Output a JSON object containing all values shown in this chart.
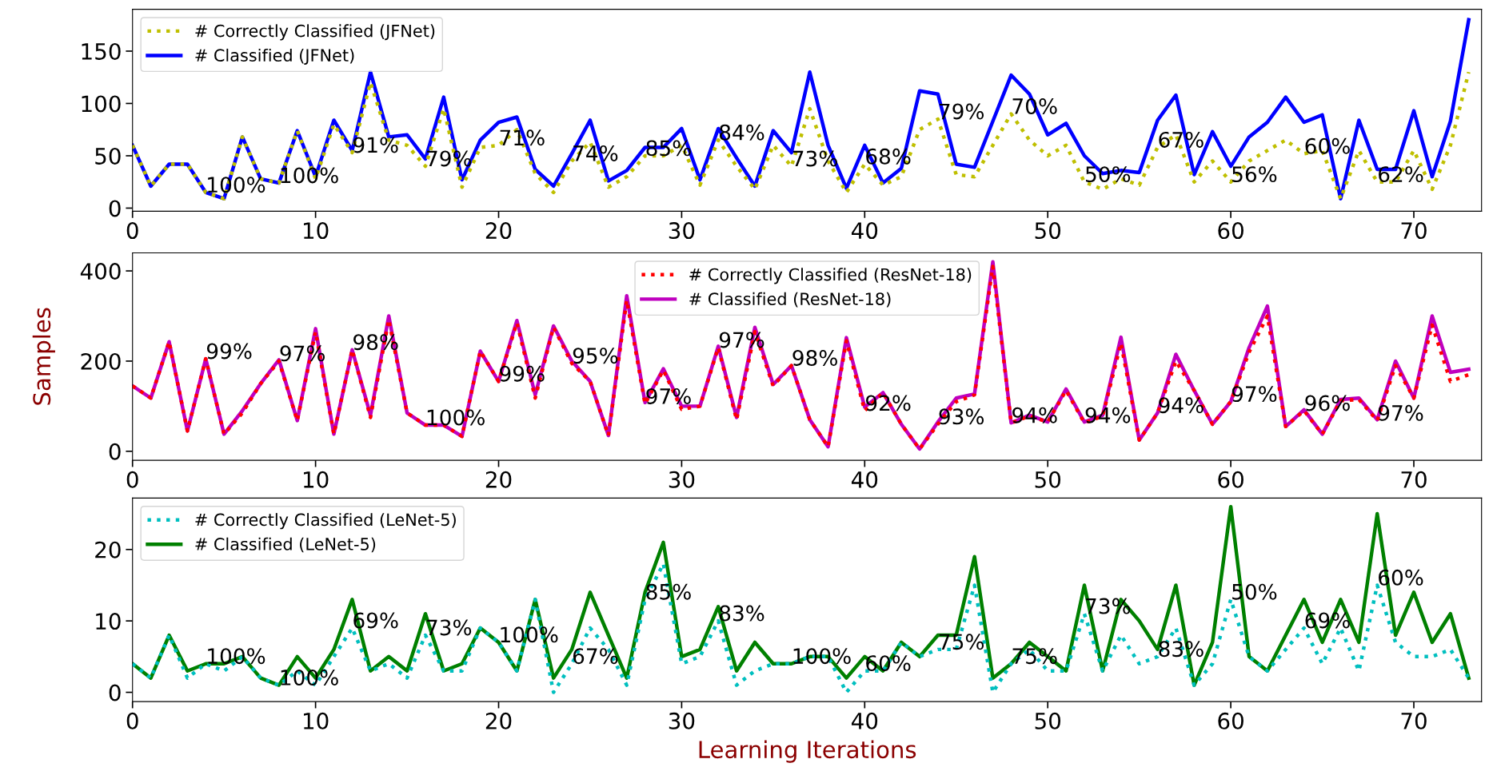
{
  "chart_data": [
    {
      "type": "line",
      "xlim": [
        0,
        73.7
      ],
      "xticks": [
        0,
        10,
        20,
        30,
        40,
        50,
        60,
        70
      ],
      "ylim": [
        -3,
        190
      ],
      "yticks": [
        0,
        50,
        100,
        150
      ],
      "grid": false,
      "legend": "top left",
      "x": [
        0,
        1,
        2,
        3,
        4,
        5,
        6,
        7,
        8,
        9,
        10,
        11,
        12,
        13,
        14,
        15,
        16,
        17,
        18,
        19,
        20,
        21,
        22,
        23,
        24,
        25,
        26,
        27,
        28,
        29,
        30,
        31,
        32,
        33,
        34,
        35,
        36,
        37,
        38,
        39,
        40,
        41,
        42,
        43,
        44,
        45,
        46,
        47,
        48,
        49,
        50,
        51,
        52,
        53,
        54,
        55,
        56,
        57,
        58,
        59,
        60,
        61,
        62,
        63,
        64,
        65,
        66,
        67,
        68,
        69,
        70,
        71,
        72,
        73
      ],
      "series": [
        {
          "name": "# Correctly Classified (JFNet)",
          "color": "#bfbf00",
          "line_style": "dotted",
          "values": [
            60,
            21,
            42,
            42,
            15,
            9,
            68,
            28,
            24,
            74,
            28,
            80,
            53,
            120,
            65,
            60,
            40,
            95,
            20,
            58,
            60,
            75,
            33,
            15,
            45,
            63,
            20,
            30,
            50,
            50,
            60,
            22,
            65,
            40,
            18,
            60,
            40,
            95,
            45,
            15,
            42,
            22,
            30,
            75,
            85,
            32,
            30,
            60,
            90,
            65,
            50,
            60,
            25,
            18,
            28,
            22,
            58,
            70,
            25,
            45,
            25,
            45,
            55,
            65,
            52,
            55,
            9,
            55,
            25,
            25,
            55,
            18,
            60,
            130
          ]
        },
        {
          "name": "# Classified (JFNet)",
          "color": "#0000ff",
          "line_style": "solid",
          "values": [
            60,
            21,
            42,
            42,
            15,
            9,
            68,
            28,
            24,
            74,
            30,
            84,
            55,
            130,
            68,
            70,
            47,
            106,
            27,
            65,
            82,
            87,
            37,
            21,
            52,
            84,
            26,
            36,
            58,
            58,
            76,
            27,
            76,
            48,
            21,
            74,
            53,
            130,
            60,
            19,
            60,
            24,
            38,
            112,
            109,
            42,
            39,
            83,
            127,
            109,
            70,
            81,
            50,
            33,
            36,
            34,
            84,
            108,
            32,
            73,
            40,
            68,
            82,
            106,
            82,
            89,
            9,
            84,
            37,
            37,
            93,
            30,
            83,
            180
          ]
        }
      ],
      "annotations": [
        {
          "text": "100%",
          "x": 4,
          "y": 15
        },
        {
          "text": "100%",
          "x": 8,
          "y": 24
        },
        {
          "text": "91%",
          "x": 12,
          "y": 53
        },
        {
          "text": "79%",
          "x": 16,
          "y": 40
        },
        {
          "text": "71%",
          "x": 20,
          "y": 60
        },
        {
          "text": "74%",
          "x": 24,
          "y": 45
        },
        {
          "text": "85%",
          "x": 28,
          "y": 50
        },
        {
          "text": "84%",
          "x": 32,
          "y": 65
        },
        {
          "text": "73%",
          "x": 36,
          "y": 40
        },
        {
          "text": "68%",
          "x": 40,
          "y": 42
        },
        {
          "text": "79%",
          "x": 44,
          "y": 85
        },
        {
          "text": "70%",
          "x": 48,
          "y": 90
        },
        {
          "text": "50%",
          "x": 52,
          "y": 25
        },
        {
          "text": "67%",
          "x": 56,
          "y": 58
        },
        {
          "text": "56%",
          "x": 60,
          "y": 25
        },
        {
          "text": "60%",
          "x": 64,
          "y": 52
        },
        {
          "text": "62%",
          "x": 68,
          "y": 25
        }
      ]
    },
    {
      "type": "line",
      "xlim": [
        0,
        73.7
      ],
      "xticks": [
        0,
        10,
        20,
        30,
        40,
        50,
        60,
        70
      ],
      "ylim": [
        -20,
        440
      ],
      "yticks": [
        0,
        200,
        400
      ],
      "grid": false,
      "legend": "top",
      "ylabel": "Samples",
      "x": [
        0,
        1,
        2,
        3,
        4,
        5,
        6,
        7,
        8,
        9,
        10,
        11,
        12,
        13,
        14,
        15,
        16,
        17,
        18,
        19,
        20,
        21,
        22,
        23,
        24,
        25,
        26,
        27,
        28,
        29,
        30,
        31,
        32,
        33,
        34,
        35,
        36,
        37,
        38,
        39,
        40,
        41,
        42,
        43,
        44,
        45,
        46,
        47,
        48,
        49,
        50,
        51,
        52,
        53,
        54,
        55,
        56,
        57,
        58,
        59,
        60,
        61,
        62,
        63,
        64,
        65,
        66,
        67,
        68,
        69,
        70,
        71,
        72,
        73
      ],
      "series": [
        {
          "name": "# Correctly Classified (ResNet-18)",
          "color": "#ff0000",
          "line_style": "dotted",
          "values": [
            145,
            118,
            243,
            45,
            205,
            38,
            85,
            150,
            200,
            68,
            265,
            38,
            225,
            75,
            292,
            85,
            58,
            58,
            33,
            222,
            155,
            285,
            118,
            275,
            195,
            155,
            35,
            335,
            105,
            180,
            93,
            100,
            230,
            70,
            265,
            145,
            190,
            70,
            10,
            245,
            90,
            130,
            60,
            5,
            60,
            110,
            125,
            410,
            63,
            78,
            65,
            135,
            63,
            78,
            240,
            25,
            85,
            200,
            135,
            60,
            110,
            220,
            300,
            55,
            90,
            38,
            112,
            115,
            68,
            190,
            118,
            280,
            155,
            170
          ]
        },
        {
          "name": "# Classified (ResNet-18)",
          "color": "#bf00bf",
          "line_style": "solid",
          "values": [
            145,
            118,
            243,
            45,
            205,
            38,
            90,
            150,
            203,
            68,
            272,
            38,
            225,
            80,
            300,
            85,
            58,
            58,
            33,
            222,
            155,
            290,
            125,
            278,
            200,
            155,
            35,
            345,
            108,
            183,
            100,
            100,
            233,
            75,
            275,
            148,
            190,
            70,
            10,
            252,
            98,
            130,
            60,
            5,
            65,
            118,
            127,
            420,
            63,
            80,
            65,
            138,
            65,
            80,
            253,
            25,
            85,
            215,
            135,
            60,
            110,
            230,
            322,
            55,
            92,
            38,
            115,
            118,
            70,
            200,
            118,
            300,
            175,
            182
          ]
        }
      ],
      "annotations": [
        {
          "text": "99%",
          "x": 4,
          "y": 205
        },
        {
          "text": "97%",
          "x": 8,
          "y": 200
        },
        {
          "text": "98%",
          "x": 12,
          "y": 225
        },
        {
          "text": "100%",
          "x": 16,
          "y": 58
        },
        {
          "text": "99%",
          "x": 20,
          "y": 155
        },
        {
          "text": "95%",
          "x": 24,
          "y": 195
        },
        {
          "text": "97%",
          "x": 28,
          "y": 105
        },
        {
          "text": "97%",
          "x": 32,
          "y": 230
        },
        {
          "text": "98%",
          "x": 36,
          "y": 190
        },
        {
          "text": "92%",
          "x": 40,
          "y": 90
        },
        {
          "text": "93%",
          "x": 44,
          "y": 60
        },
        {
          "text": "94%",
          "x": 48,
          "y": 63
        },
        {
          "text": "94%",
          "x": 52,
          "y": 63
        },
        {
          "text": "94%",
          "x": 56,
          "y": 85
        },
        {
          "text": "97%",
          "x": 60,
          "y": 110
        },
        {
          "text": "96%",
          "x": 64,
          "y": 90
        },
        {
          "text": "97%",
          "x": 68,
          "y": 68
        }
      ]
    },
    {
      "type": "line",
      "xlim": [
        0,
        73.7
      ],
      "xticks": [
        0,
        10,
        20,
        30,
        40,
        50,
        60,
        70
      ],
      "ylim": [
        -1.3,
        27.2
      ],
      "yticks": [
        0,
        10,
        20
      ],
      "grid": false,
      "legend": "top left",
      "xlabel": "Learning Iterations",
      "x": [
        0,
        1,
        2,
        3,
        4,
        5,
        6,
        7,
        8,
        9,
        10,
        11,
        12,
        13,
        14,
        15,
        16,
        17,
        18,
        19,
        20,
        21,
        22,
        23,
        24,
        25,
        26,
        27,
        28,
        29,
        30,
        31,
        32,
        33,
        34,
        35,
        36,
        37,
        38,
        39,
        40,
        41,
        42,
        43,
        44,
        45,
        46,
        47,
        48,
        49,
        50,
        51,
        52,
        53,
        54,
        55,
        56,
        57,
        58,
        59,
        60,
        61,
        62,
        63,
        64,
        65,
        66,
        67,
        68,
        69,
        70,
        71,
        72,
        73
      ],
      "series": [
        {
          "name": "# Correctly Classified (LeNet-5)",
          "color": "#00bfbf",
          "line_style": "dotted",
          "values": [
            4,
            2,
            8,
            2,
            4,
            3,
            5,
            2,
            1,
            3,
            1,
            5,
            9,
            3,
            4,
            2,
            8,
            3,
            3,
            9,
            7,
            3,
            13,
            0,
            4,
            9,
            6,
            1,
            13,
            18,
            4,
            5,
            10,
            1,
            3,
            4,
            4,
            5,
            5,
            0,
            3,
            3,
            7,
            5,
            6,
            6,
            15,
            0,
            4,
            6,
            3,
            3,
            11,
            3,
            8,
            4,
            5,
            9,
            1,
            4,
            13,
            5,
            3,
            6,
            9,
            4,
            9,
            3,
            15,
            7,
            5,
            5,
            6,
            2
          ]
        },
        {
          "name": "# Classified (LeNet-5)",
          "color": "#008000",
          "line_style": "solid",
          "values": [
            4,
            2,
            8,
            3,
            4,
            4,
            5,
            2,
            1,
            5,
            2,
            6,
            13,
            3,
            5,
            3,
            11,
            3,
            4,
            9,
            7,
            3,
            13,
            2,
            6,
            14,
            8,
            2,
            14,
            21,
            5,
            6,
            12,
            3,
            7,
            4,
            4,
            5,
            5,
            2,
            5,
            3,
            7,
            5,
            8,
            8,
            19,
            2,
            4,
            7,
            5,
            3,
            15,
            3,
            13,
            10,
            6,
            15,
            1,
            7,
            26,
            5,
            3,
            8,
            13,
            7,
            13,
            7,
            25,
            8,
            14,
            7,
            11,
            2
          ]
        }
      ],
      "annotations": [
        {
          "text": "100%",
          "x": 4,
          "y": 4
        },
        {
          "text": "100%",
          "x": 8,
          "y": 1
        },
        {
          "text": "69%",
          "x": 12,
          "y": 9
        },
        {
          "text": "73%",
          "x": 16,
          "y": 8
        },
        {
          "text": "100%",
          "x": 20,
          "y": 7
        },
        {
          "text": "67%",
          "x": 24,
          "y": 4
        },
        {
          "text": "85%",
          "x": 28,
          "y": 13
        },
        {
          "text": "83%",
          "x": 32,
          "y": 10
        },
        {
          "text": "100%",
          "x": 36,
          "y": 4
        },
        {
          "text": "60%",
          "x": 40,
          "y": 3
        },
        {
          "text": "75%",
          "x": 44,
          "y": 6
        },
        {
          "text": "75%",
          "x": 48,
          "y": 4
        },
        {
          "text": "73%",
          "x": 52,
          "y": 11
        },
        {
          "text": "83%",
          "x": 56,
          "y": 5
        },
        {
          "text": "50%",
          "x": 60,
          "y": 13
        },
        {
          "text": "69%",
          "x": 64,
          "y": 9
        },
        {
          "text": "60%",
          "x": 68,
          "y": 15
        }
      ]
    }
  ]
}
